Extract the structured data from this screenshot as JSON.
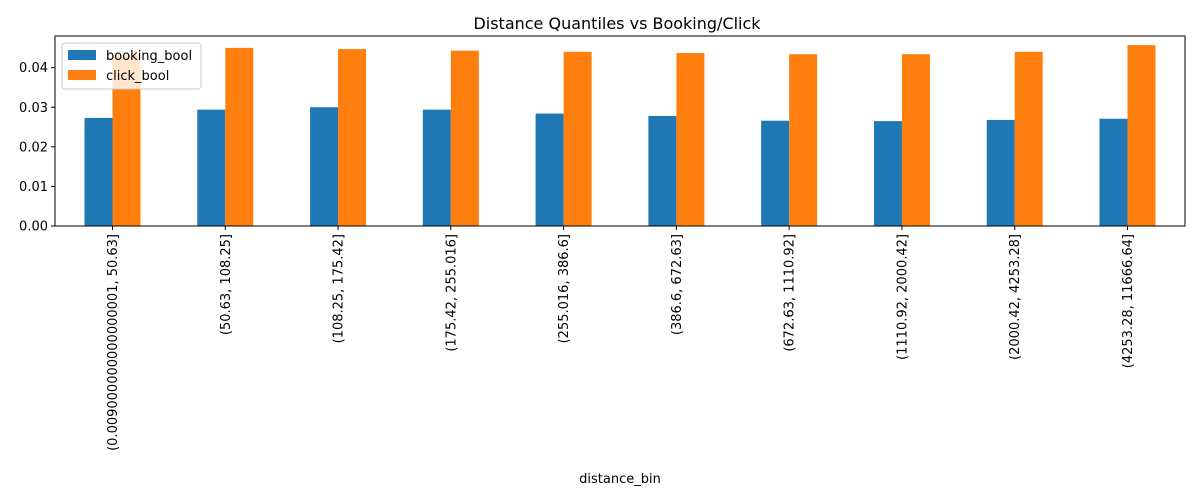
{
  "chart_data": {
    "type": "bar",
    "title": "Distance Quantiles vs Booking/Click",
    "xlabel": "distance_bin",
    "ylabel": "",
    "ylim": [
      0,
      0.048
    ],
    "yticks": [
      "0.00",
      "0.01",
      "0.02",
      "0.03",
      "0.04"
    ],
    "legend_position": "top-left",
    "grid": false,
    "categories": [
      "(0.009000000000000001, 50.63]",
      "(50.63, 108.25]",
      "(108.25, 175.42]",
      "(175.42, 255.016]",
      "(255.016, 386.6]",
      "(386.6, 672.63]",
      "(672.63, 1110.92]",
      "(1110.92, 2000.42]",
      "(2000.42, 4253.28]",
      "(4253.28, 11666.64]"
    ],
    "series": [
      {
        "name": "booking_bool",
        "color": "#1f77b4",
        "values": [
          0.0273,
          0.0294,
          0.03,
          0.0294,
          0.0284,
          0.0278,
          0.0266,
          0.0265,
          0.0268,
          0.0271
        ]
      },
      {
        "name": "click_bool",
        "color": "#ff7f0e",
        "values": [
          0.0432,
          0.045,
          0.0447,
          0.0443,
          0.044,
          0.0437,
          0.0434,
          0.0434,
          0.044,
          0.0457
        ]
      }
    ]
  }
}
